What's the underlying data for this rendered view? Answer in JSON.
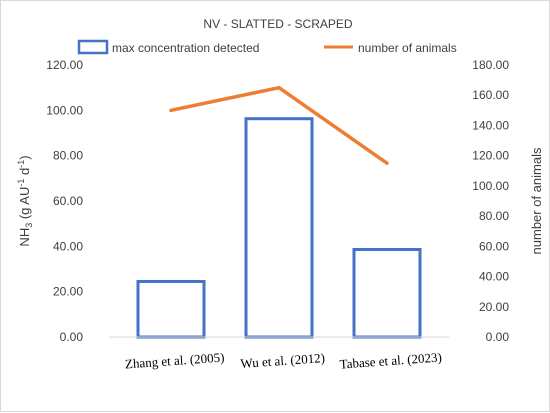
{
  "chart_data": {
    "type": "bar",
    "title": "NV -  SLATTED - SCRAPED",
    "categories": [
      "Zhang et al. (2005)",
      "Wu et al. (2012)",
      "Tabase et al. (2023)"
    ],
    "series": [
      {
        "name": "max concentration detected",
        "kind": "bar",
        "axis": "left",
        "color": "#4472c4",
        "style": "hollow",
        "values": [
          24.5,
          96.3,
          38.6
        ]
      },
      {
        "name": "number of animals",
        "kind": "line",
        "axis": "right",
        "color": "#ed7d31",
        "values": [
          150,
          165,
          115
        ]
      }
    ],
    "ylabel_left": {
      "base": "NH",
      "sub": "3",
      "mid": " (g AU",
      "sup1": "-1",
      "mid2": " d",
      "sup2": "-1",
      "end": ")"
    },
    "ylabel_right": "number of animals",
    "ylim_left": [
      0,
      120
    ],
    "yticks_left": [
      "0.00",
      "20.00",
      "40.00",
      "60.00",
      "80.00",
      "100.00",
      "120.00"
    ],
    "ylim_right": [
      0,
      180
    ],
    "yticks_right": [
      "0.00",
      "20.00",
      "40.00",
      "60.00",
      "80.00",
      "100.00",
      "120.00",
      "140.00",
      "160.00",
      "180.00"
    ],
    "grid": false,
    "legend": "top"
  }
}
